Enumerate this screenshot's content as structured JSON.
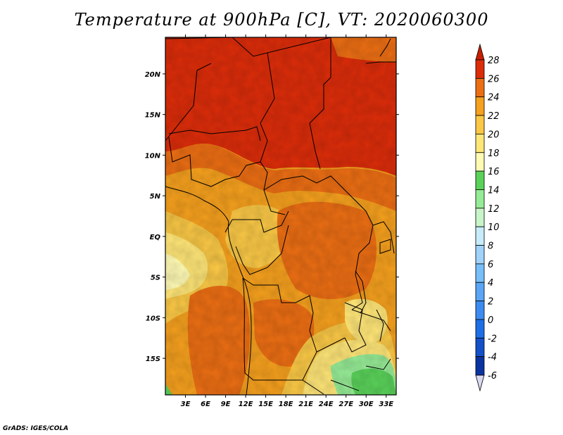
{
  "title": "Temperature at 900hPa [C], VT: 2020060300",
  "footer": "GrADS: IGES/COLA",
  "map": {
    "variable": "Temperature at 900hPa",
    "units": "C",
    "valid_time": "2020060300",
    "lon_range": [
      0,
      34.5
    ],
    "lat_range": [
      -19.5,
      24.5
    ],
    "lon_ticks": [
      {
        "value": 3,
        "label": "3E"
      },
      {
        "value": 6,
        "label": "6E"
      },
      {
        "value": 9,
        "label": "9E"
      },
      {
        "value": 12,
        "label": "12E"
      },
      {
        "value": 15,
        "label": "15E"
      },
      {
        "value": 18,
        "label": "18E"
      },
      {
        "value": 21,
        "label": "21E"
      },
      {
        "value": 24,
        "label": "24E"
      },
      {
        "value": 27,
        "label": "27E"
      },
      {
        "value": 30,
        "label": "30E"
      },
      {
        "value": 33,
        "label": "33E"
      }
    ],
    "lat_ticks": [
      {
        "value": 20,
        "label": "20N"
      },
      {
        "value": 15,
        "label": "15N"
      },
      {
        "value": 10,
        "label": "10N"
      },
      {
        "value": 5,
        "label": "5N"
      },
      {
        "value": 0,
        "label": "EQ"
      },
      {
        "value": -5,
        "label": "5S"
      },
      {
        "value": -10,
        "label": "10S"
      },
      {
        "value": -15,
        "label": "15S"
      }
    ]
  },
  "colorbar": {
    "levels": [
      "-6",
      "-4",
      "-2",
      "0",
      "2",
      "4",
      "6",
      "8",
      "10",
      "12",
      "14",
      "16",
      "18",
      "20",
      "22",
      "24",
      "26",
      "28"
    ],
    "colors": [
      "#140a78",
      "#0a32a0",
      "#1450c8",
      "#1e6ee6",
      "#3c8cf0",
      "#5aa5f5",
      "#78bef8",
      "#a0d2fa",
      "#c8ebfa",
      "#c8f5c8",
      "#96eb96",
      "#5ad25a",
      "#fffab4",
      "#ffe678",
      "#fac846",
      "#f5a01e",
      "#eb6e14",
      "#dc2d0a",
      "#c81e00"
    ]
  },
  "legend_colors": {
    "hot": "#e0200a",
    "warm": "#f5a01e",
    "mild": "#ffe678",
    "cool": "#5ad25a"
  }
}
